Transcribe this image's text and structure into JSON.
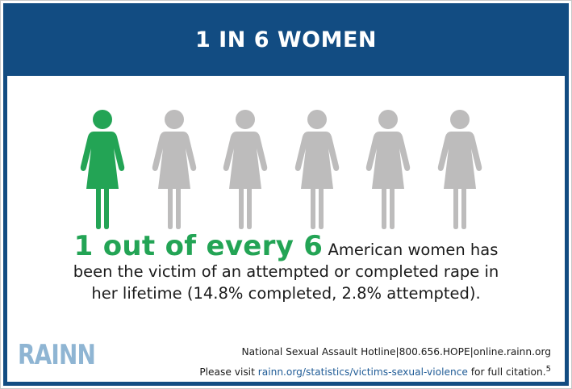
{
  "header": {
    "title": "1 IN 6 WOMEN"
  },
  "figures": {
    "highlight_color": "#23a455",
    "base_color": "#bdbcbc",
    "items": [
      {
        "icon": "woman-figure-icon",
        "highlighted": true
      },
      {
        "icon": "woman-figure-icon",
        "highlighted": false
      },
      {
        "icon": "woman-figure-icon",
        "highlighted": false
      },
      {
        "icon": "woman-figure-icon",
        "highlighted": false
      },
      {
        "icon": "woman-figure-icon",
        "highlighted": false
      },
      {
        "icon": "woman-figure-icon",
        "highlighted": false
      }
    ]
  },
  "statistic": {
    "highlight": "1 out of every 6",
    "line1_rest": " American women has",
    "line2": "been the victim of an attempted or completed rape in",
    "line3": "her lifetime (14.8% completed, 2.8% attempted)."
  },
  "logo": {
    "text": "RAINN"
  },
  "footer": {
    "hotline_line": "National Sexual Assault Hotline|800.656.HOPE|online.rainn.org",
    "citation_prefix": "Please visit ",
    "citation_link": "rainn.org/statistics/victims-sexual-violence",
    "citation_suffix": " for full citation.",
    "footnote": "5"
  },
  "colors": {
    "brand_blue": "#124c82",
    "accent_green": "#23a455",
    "logo_blue": "#8fb5d3"
  }
}
